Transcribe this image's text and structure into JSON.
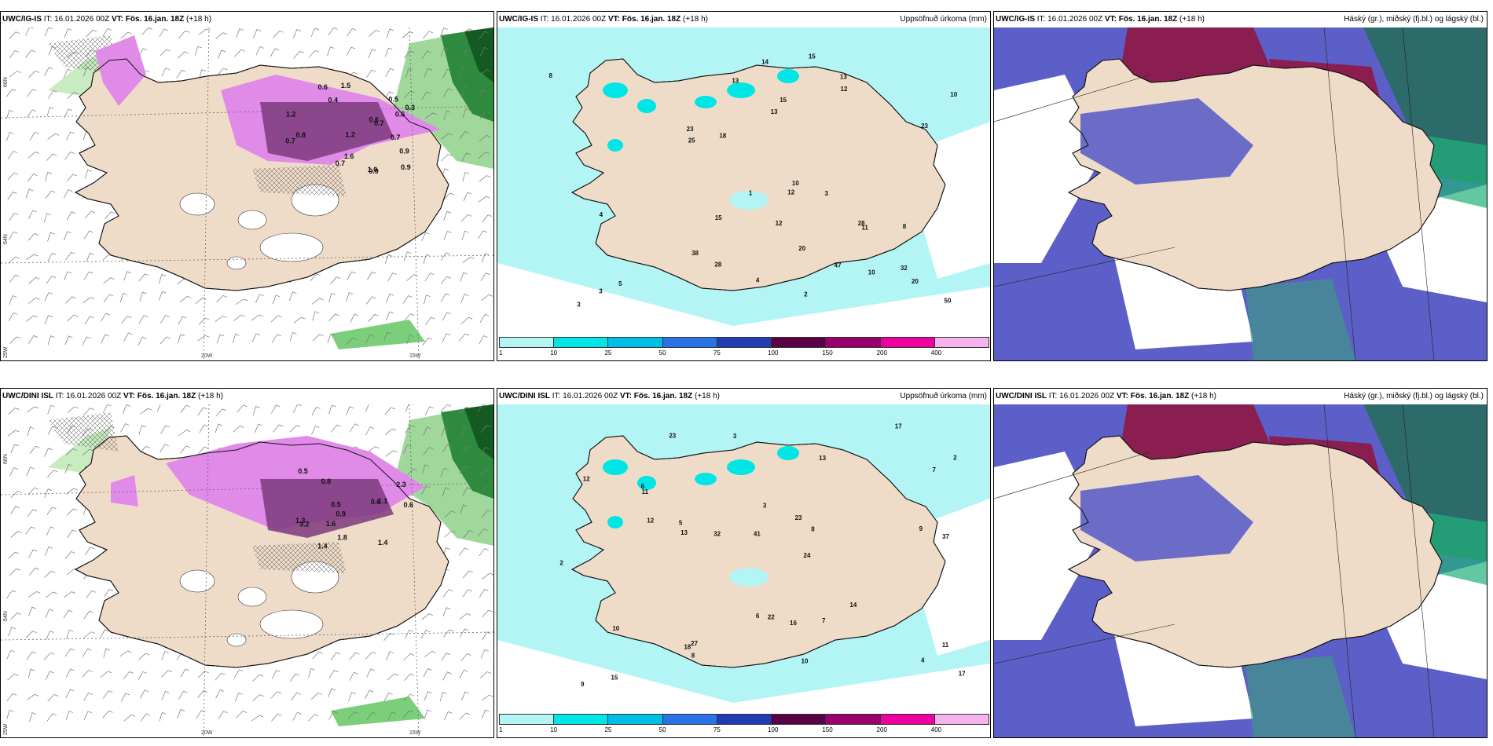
{
  "rows": [
    {
      "model": "UWC/IG-IS",
      "it": "IT: 16.01.2026 00Z",
      "vt_label": "VT:",
      "vt": "Fös. 16.jan. 18Z",
      "lead": "(+18 h)"
    },
    {
      "model": "UWC/DINI ISL",
      "it": "IT: 16.01.2026 00Z",
      "vt_label": "VT:",
      "vt": "Fös. 16.jan. 18Z",
      "lead": "(+18 h)"
    }
  ],
  "panel_titles": {
    "precip": "Uppsöfnuð úrkoma (mm)",
    "cloud": "Háský (gr.), miðský (fj.bl.) og lágský (bl.)"
  },
  "axis_labels": {
    "lat_66": "66N",
    "lat_64": "64N",
    "lon_25": "25W",
    "lon_20": "20W",
    "lon_15": "15W"
  },
  "colorbar": {
    "ticks": [
      "1",
      "10",
      "25",
      "50",
      "75",
      "100",
      "150",
      "200",
      "400"
    ],
    "colors": [
      "#b3f5f5",
      "#00e5e5",
      "#00bfe6",
      "#2a73e6",
      "#1f3cb3",
      "#5a0046",
      "#99006b",
      "#ee00a0",
      "#f5b3ee"
    ]
  },
  "land_color": "#efdcc8",
  "precip_values_top": [
    "3",
    "8",
    "10",
    "12",
    "13",
    "15",
    "32",
    "13",
    "10",
    "38",
    "50",
    "25",
    "28",
    "14",
    "47",
    "23",
    "28",
    "4",
    "1",
    "10",
    "8",
    "5",
    "4",
    "3",
    "11",
    "12",
    "18",
    "13",
    "23",
    "20",
    "20",
    "15",
    "15",
    "3",
    "12",
    "2"
  ],
  "precip_values_bottom": [
    "9",
    "11",
    "23",
    "12",
    "14",
    "8",
    "24",
    "41",
    "32",
    "22",
    "23",
    "37",
    "13",
    "27",
    "16",
    "18",
    "12",
    "7",
    "9",
    "10",
    "6",
    "5",
    "4",
    "3",
    "2",
    "10",
    "17",
    "15",
    "13",
    "17",
    "11",
    "8",
    "6",
    "3",
    "2",
    "7"
  ],
  "wind_values_top": [
    "0.9",
    "0.7",
    "0.5",
    "0.6",
    "0.4",
    "1.0",
    "0.3",
    "0.8",
    "1.2",
    "0.7",
    "1.5",
    "0.6",
    "0.7",
    "0.9",
    "1.6",
    "1.2",
    "0.7",
    "0.6",
    "0.9"
  ],
  "wind_values_bottom": [
    "0.6",
    "1.4",
    "1.1",
    "0.9",
    "1.8",
    "0.8",
    "0.5",
    "1.3",
    "1.6",
    "0.6",
    "3.2",
    "0.5",
    "1.4",
    "2.3"
  ]
}
